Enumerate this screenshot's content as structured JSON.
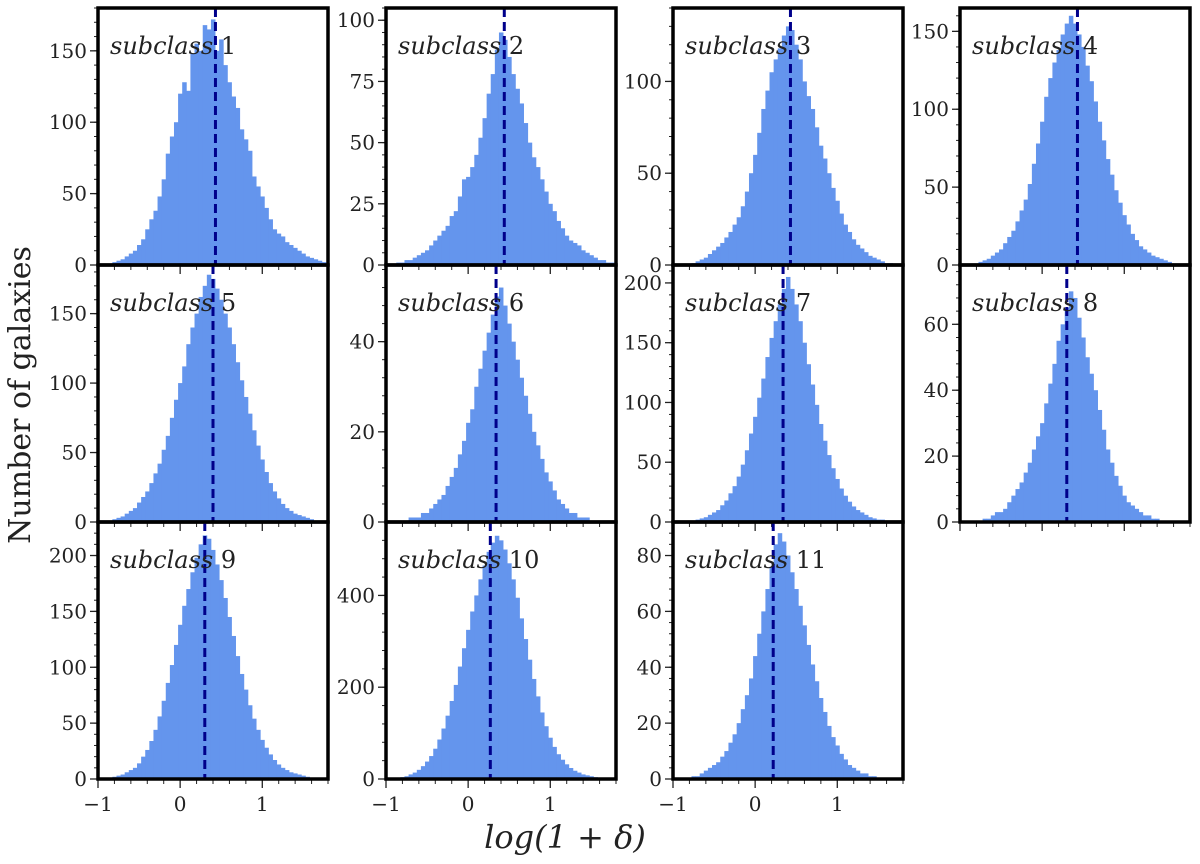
{
  "figure": {
    "ylabel": "Number of galaxies",
    "xlabel": "log(1 + δ)",
    "bar_color": "#6495ED",
    "median_line_color": "#00008B"
  },
  "chart_data": [
    {
      "type": "bar",
      "title": "subclass 1",
      "xlim": [
        -1,
        1.8
      ],
      "ylim": [
        0,
        180
      ],
      "yticks": [
        0,
        50,
        100,
        150
      ],
      "median": 0.43,
      "bin_width": 0.05,
      "x": [
        -0.85,
        -0.8,
        -0.75,
        -0.7,
        -0.65,
        -0.6,
        -0.55,
        -0.5,
        -0.45,
        -0.4,
        -0.35,
        -0.3,
        -0.25,
        -0.2,
        -0.15,
        -0.1,
        -0.05,
        0.0,
        0.05,
        0.1,
        0.15,
        0.2,
        0.25,
        0.3,
        0.35,
        0.4,
        0.45,
        0.5,
        0.55,
        0.6,
        0.65,
        0.7,
        0.75,
        0.8,
        0.85,
        0.9,
        0.95,
        1.0,
        1.05,
        1.1,
        1.15,
        1.2,
        1.25,
        1.3,
        1.35,
        1.4,
        1.45,
        1.5,
        1.55,
        1.6,
        1.65,
        1.7,
        1.75
      ],
      "values": [
        1,
        2,
        3,
        4,
        6,
        8,
        10,
        14,
        18,
        25,
        32,
        38,
        48,
        60,
        78,
        90,
        100,
        120,
        128,
        122,
        148,
        155,
        150,
        168,
        165,
        172,
        150,
        158,
        140,
        128,
        118,
        110,
        95,
        88,
        80,
        62,
        55,
        48,
        40,
        32,
        25,
        22,
        20,
        16,
        14,
        12,
        10,
        8,
        6,
        5,
        4,
        3,
        2
      ]
    },
    {
      "type": "bar",
      "title": "subclass 2",
      "xlim": [
        -1,
        1.8
      ],
      "ylim": [
        0,
        105
      ],
      "yticks": [
        0,
        25,
        50,
        75,
        100
      ],
      "median": 0.44,
      "bin_width": 0.05,
      "x": [
        -0.85,
        -0.8,
        -0.75,
        -0.7,
        -0.65,
        -0.6,
        -0.55,
        -0.5,
        -0.45,
        -0.4,
        -0.35,
        -0.3,
        -0.25,
        -0.2,
        -0.15,
        -0.1,
        -0.05,
        0.0,
        0.05,
        0.1,
        0.15,
        0.2,
        0.25,
        0.3,
        0.35,
        0.4,
        0.45,
        0.5,
        0.55,
        0.6,
        0.65,
        0.7,
        0.75,
        0.8,
        0.85,
        0.9,
        0.95,
        1.0,
        1.05,
        1.1,
        1.15,
        1.2,
        1.25,
        1.3,
        1.35,
        1.4,
        1.45,
        1.5,
        1.55,
        1.6,
        1.65,
        1.7,
        1.75
      ],
      "values": [
        1,
        1,
        2,
        2,
        3,
        4,
        5,
        6,
        8,
        10,
        12,
        14,
        16,
        20,
        22,
        28,
        35,
        36,
        40,
        45,
        52,
        60,
        70,
        78,
        88,
        95,
        92,
        85,
        78,
        72,
        66,
        58,
        50,
        44,
        40,
        35,
        30,
        25,
        22,
        18,
        15,
        12,
        10,
        9,
        8,
        6,
        5,
        4,
        3,
        2,
        2,
        1,
        1
      ]
    },
    {
      "type": "bar",
      "title": "subclass 3",
      "xlim": [
        -1,
        1.8
      ],
      "ylim": [
        0,
        140
      ],
      "yticks": [
        0,
        50,
        100
      ],
      "median": 0.43,
      "bin_width": 0.05,
      "x": [
        -0.85,
        -0.8,
        -0.75,
        -0.7,
        -0.65,
        -0.6,
        -0.55,
        -0.5,
        -0.45,
        -0.4,
        -0.35,
        -0.3,
        -0.25,
        -0.2,
        -0.15,
        -0.1,
        -0.05,
        0.0,
        0.05,
        0.1,
        0.15,
        0.2,
        0.25,
        0.3,
        0.35,
        0.4,
        0.45,
        0.5,
        0.55,
        0.6,
        0.65,
        0.7,
        0.75,
        0.8,
        0.85,
        0.9,
        0.95,
        1.0,
        1.05,
        1.1,
        1.15,
        1.2,
        1.25,
        1.3,
        1.35,
        1.4,
        1.45,
        1.5,
        1.55,
        1.6,
        1.65,
        1.7,
        1.75
      ],
      "values": [
        0,
        0,
        1,
        2,
        3,
        4,
        6,
        8,
        10,
        12,
        15,
        18,
        22,
        26,
        32,
        40,
        50,
        60,
        72,
        85,
        95,
        105,
        112,
        118,
        125,
        130,
        128,
        120,
        112,
        100,
        92,
        85,
        75,
        65,
        58,
        50,
        42,
        35,
        28,
        22,
        18,
        14,
        11,
        9,
        7,
        5,
        4,
        3,
        2,
        1,
        1,
        0,
        0
      ]
    },
    {
      "type": "bar",
      "title": "subclass 4",
      "xlim": [
        -1,
        1.8
      ],
      "ylim": [
        0,
        165
      ],
      "yticks": [
        0,
        50,
        100,
        150
      ],
      "median": 0.43,
      "bin_width": 0.05,
      "x": [
        -0.85,
        -0.8,
        -0.75,
        -0.7,
        -0.65,
        -0.6,
        -0.55,
        -0.5,
        -0.45,
        -0.4,
        -0.35,
        -0.3,
        -0.25,
        -0.2,
        -0.15,
        -0.1,
        -0.05,
        0.0,
        0.05,
        0.1,
        0.15,
        0.2,
        0.25,
        0.3,
        0.35,
        0.4,
        0.45,
        0.5,
        0.55,
        0.6,
        0.65,
        0.7,
        0.75,
        0.8,
        0.85,
        0.9,
        0.95,
        1.0,
        1.05,
        1.1,
        1.15,
        1.2,
        1.25,
        1.3,
        1.35,
        1.4,
        1.45,
        1.5,
        1.55,
        1.6,
        1.65,
        1.7,
        1.75
      ],
      "values": [
        0,
        1,
        2,
        3,
        4,
        6,
        8,
        10,
        14,
        18,
        22,
        28,
        35,
        42,
        52,
        65,
        78,
        92,
        108,
        120,
        130,
        138,
        148,
        155,
        160,
        155,
        148,
        140,
        128,
        118,
        105,
        92,
        80,
        68,
        58,
        48,
        40,
        32,
        26,
        20,
        16,
        12,
        10,
        8,
        6,
        5,
        4,
        3,
        2,
        1,
        1,
        0,
        0
      ]
    },
    {
      "type": "bar",
      "title": "subclass 5",
      "xlim": [
        -1,
        1.8
      ],
      "ylim": [
        0,
        185
      ],
      "yticks": [
        0,
        50,
        100,
        150
      ],
      "median": 0.4,
      "bin_width": 0.05,
      "x": [
        -0.85,
        -0.8,
        -0.75,
        -0.7,
        -0.65,
        -0.6,
        -0.55,
        -0.5,
        -0.45,
        -0.4,
        -0.35,
        -0.3,
        -0.25,
        -0.2,
        -0.15,
        -0.1,
        -0.05,
        0.0,
        0.05,
        0.1,
        0.15,
        0.2,
        0.25,
        0.3,
        0.35,
        0.4,
        0.45,
        0.5,
        0.55,
        0.6,
        0.65,
        0.7,
        0.75,
        0.8,
        0.85,
        0.9,
        0.95,
        1.0,
        1.05,
        1.1,
        1.15,
        1.2,
        1.25,
        1.3,
        1.35,
        1.4,
        1.45,
        1.5,
        1.55,
        1.6,
        1.65,
        1.7,
        1.75
      ],
      "values": [
        1,
        2,
        3,
        4,
        6,
        8,
        10,
        14,
        18,
        22,
        28,
        35,
        42,
        52,
        62,
        75,
        88,
        100,
        112,
        128,
        140,
        150,
        162,
        170,
        178,
        175,
        168,
        160,
        150,
        140,
        128,
        115,
        102,
        90,
        78,
        66,
        55,
        45,
        36,
        28,
        22,
        17,
        13,
        10,
        8,
        6,
        5,
        4,
        3,
        2,
        1,
        1,
        0
      ]
    },
    {
      "type": "bar",
      "title": "subclass 6",
      "xlim": [
        -1,
        1.8
      ],
      "ylim": [
        0,
        57
      ],
      "yticks": [
        0,
        20,
        40
      ],
      "median": 0.34,
      "bin_width": 0.05,
      "x": [
        -0.85,
        -0.8,
        -0.75,
        -0.7,
        -0.65,
        -0.6,
        -0.55,
        -0.5,
        -0.45,
        -0.4,
        -0.35,
        -0.3,
        -0.25,
        -0.2,
        -0.15,
        -0.1,
        -0.05,
        0.0,
        0.05,
        0.1,
        0.15,
        0.2,
        0.25,
        0.3,
        0.35,
        0.4,
        0.45,
        0.5,
        0.55,
        0.6,
        0.65,
        0.7,
        0.75,
        0.8,
        0.85,
        0.9,
        0.95,
        1.0,
        1.05,
        1.1,
        1.15,
        1.2,
        1.25,
        1.3,
        1.35,
        1.4,
        1.45,
        1.5,
        1.55,
        1.6,
        1.65,
        1.7,
        1.75
      ],
      "values": [
        0,
        0,
        0,
        1,
        1,
        1,
        2,
        2,
        3,
        4,
        5,
        6,
        8,
        10,
        12,
        15,
        18,
        22,
        25,
        30,
        34,
        38,
        42,
        46,
        50,
        52,
        48,
        44,
        40,
        36,
        32,
        28,
        24,
        20,
        17,
        14,
        11,
        9,
        7,
        5,
        4,
        3,
        2,
        2,
        1,
        1,
        1,
        0,
        0,
        0,
        0,
        0,
        0
      ]
    },
    {
      "type": "bar",
      "title": "subclass 7",
      "xlim": [
        -1,
        1.8
      ],
      "ylim": [
        0,
        215
      ],
      "yticks": [
        0,
        50,
        100,
        150,
        200
      ],
      "median": 0.34,
      "bin_width": 0.05,
      "x": [
        -0.85,
        -0.8,
        -0.75,
        -0.7,
        -0.65,
        -0.6,
        -0.55,
        -0.5,
        -0.45,
        -0.4,
        -0.35,
        -0.3,
        -0.25,
        -0.2,
        -0.15,
        -0.1,
        -0.05,
        0.0,
        0.05,
        0.1,
        0.15,
        0.2,
        0.25,
        0.3,
        0.35,
        0.4,
        0.45,
        0.5,
        0.55,
        0.6,
        0.65,
        0.7,
        0.75,
        0.8,
        0.85,
        0.9,
        0.95,
        1.0,
        1.05,
        1.1,
        1.15,
        1.2,
        1.25,
        1.3,
        1.35,
        1.4,
        1.45,
        1.5,
        1.55,
        1.6,
        1.65,
        1.7,
        1.75
      ],
      "values": [
        0,
        0,
        1,
        2,
        3,
        4,
        6,
        8,
        10,
        14,
        18,
        24,
        30,
        38,
        48,
        60,
        74,
        88,
        104,
        120,
        138,
        154,
        168,
        182,
        195,
        205,
        195,
        182,
        168,
        150,
        132,
        115,
        98,
        82,
        68,
        56,
        45,
        36,
        28,
        22,
        17,
        13,
        10,
        8,
        6,
        4,
        3,
        2,
        2,
        1,
        1,
        0,
        0
      ]
    },
    {
      "type": "bar",
      "title": "subclass 8",
      "xlim": [
        -1,
        1.8
      ],
      "ylim": [
        0,
        78
      ],
      "yticks": [
        0,
        20,
        40,
        60
      ],
      "median": 0.3,
      "bin_width": 0.05,
      "x": [
        -0.85,
        -0.8,
        -0.75,
        -0.7,
        -0.65,
        -0.6,
        -0.55,
        -0.5,
        -0.45,
        -0.4,
        -0.35,
        -0.3,
        -0.25,
        -0.2,
        -0.15,
        -0.1,
        -0.05,
        0.0,
        0.05,
        0.1,
        0.15,
        0.2,
        0.25,
        0.3,
        0.35,
        0.4,
        0.45,
        0.5,
        0.55,
        0.6,
        0.65,
        0.7,
        0.75,
        0.8,
        0.85,
        0.9,
        0.95,
        1.0,
        1.05,
        1.1,
        1.15,
        1.2,
        1.25,
        1.3,
        1.35,
        1.4,
        1.45,
        1.5,
        1.55,
        1.6,
        1.65,
        1.7,
        1.75
      ],
      "values": [
        0,
        0,
        0,
        1,
        1,
        2,
        3,
        3,
        4,
        6,
        8,
        10,
        12,
        15,
        18,
        22,
        26,
        30,
        36,
        42,
        48,
        55,
        60,
        65,
        70,
        68,
        62,
        56,
        50,
        45,
        40,
        34,
        28,
        22,
        18,
        14,
        11,
        8,
        6,
        5,
        4,
        3,
        2,
        2,
        1,
        1,
        0,
        0,
        0,
        0,
        0,
        0,
        0
      ]
    },
    {
      "type": "bar",
      "title": "subclass 9",
      "xlim": [
        -1,
        1.8
      ],
      "ylim": [
        0,
        230
      ],
      "yticks": [
        0,
        50,
        100,
        150,
        200
      ],
      "median": 0.3,
      "bin_width": 0.05,
      "x": [
        -0.85,
        -0.8,
        -0.75,
        -0.7,
        -0.65,
        -0.6,
        -0.55,
        -0.5,
        -0.45,
        -0.4,
        -0.35,
        -0.3,
        -0.25,
        -0.2,
        -0.15,
        -0.1,
        -0.05,
        0.0,
        0.05,
        0.1,
        0.15,
        0.2,
        0.25,
        0.3,
        0.35,
        0.4,
        0.45,
        0.5,
        0.55,
        0.6,
        0.65,
        0.7,
        0.75,
        0.8,
        0.85,
        0.9,
        0.95,
        1.0,
        1.05,
        1.1,
        1.15,
        1.2,
        1.25,
        1.3,
        1.35,
        1.4,
        1.45,
        1.5,
        1.55,
        1.6,
        1.65,
        1.7,
        1.75
      ],
      "values": [
        1,
        2,
        3,
        4,
        6,
        8,
        10,
        14,
        20,
        26,
        34,
        44,
        56,
        70,
        86,
        102,
        120,
        138,
        155,
        170,
        185,
        198,
        210,
        218,
        215,
        205,
        192,
        178,
        162,
        145,
        128,
        110,
        94,
        80,
        66,
        54,
        44,
        35,
        28,
        22,
        17,
        13,
        10,
        8,
        6,
        5,
        4,
        3,
        2,
        1,
        1,
        0,
        0
      ]
    },
    {
      "type": "bar",
      "title": "subclass 10",
      "xlim": [
        -1,
        1.8
      ],
      "ylim": [
        0,
        560
      ],
      "yticks": [
        0,
        200,
        400
      ],
      "median": 0.27,
      "bin_width": 0.05,
      "x": [
        -0.85,
        -0.8,
        -0.75,
        -0.7,
        -0.65,
        -0.6,
        -0.55,
        -0.5,
        -0.45,
        -0.4,
        -0.35,
        -0.3,
        -0.25,
        -0.2,
        -0.15,
        -0.1,
        -0.05,
        0.0,
        0.05,
        0.1,
        0.15,
        0.2,
        0.25,
        0.3,
        0.35,
        0.4,
        0.45,
        0.5,
        0.55,
        0.6,
        0.65,
        0.7,
        0.75,
        0.8,
        0.85,
        0.9,
        0.95,
        1.0,
        1.05,
        1.1,
        1.15,
        1.2,
        1.25,
        1.3,
        1.35,
        1.4,
        1.45,
        1.5,
        1.55,
        1.6,
        1.65,
        1.7,
        1.75
      ],
      "values": [
        2,
        4,
        6,
        10,
        14,
        20,
        28,
        38,
        50,
        66,
        86,
        110,
        138,
        170,
        205,
        245,
        285,
        325,
        365,
        400,
        435,
        465,
        495,
        515,
        530,
        520,
        500,
        470,
        435,
        395,
        350,
        305,
        260,
        218,
        180,
        145,
        115,
        90,
        70,
        54,
        42,
        32,
        24,
        18,
        14,
        10,
        8,
        6,
        4,
        3,
        2,
        1,
        1
      ]
    },
    {
      "type": "bar",
      "title": "subclass 11",
      "xlim": [
        -1,
        1.8
      ],
      "ylim": [
        0,
        92
      ],
      "yticks": [
        0,
        20,
        40,
        60,
        80
      ],
      "median": 0.22,
      "bin_width": 0.05,
      "x": [
        -0.85,
        -0.8,
        -0.75,
        -0.7,
        -0.65,
        -0.6,
        -0.55,
        -0.5,
        -0.45,
        -0.4,
        -0.35,
        -0.3,
        -0.25,
        -0.2,
        -0.15,
        -0.1,
        -0.05,
        0.0,
        0.05,
        0.1,
        0.15,
        0.2,
        0.25,
        0.3,
        0.35,
        0.4,
        0.45,
        0.5,
        0.55,
        0.6,
        0.65,
        0.7,
        0.75,
        0.8,
        0.85,
        0.9,
        0.95,
        1.0,
        1.05,
        1.1,
        1.15,
        1.2,
        1.25,
        1.3,
        1.35,
        1.4,
        1.45,
        1.5,
        1.55,
        1.6,
        1.65,
        1.7,
        1.75
      ],
      "values": [
        0,
        0,
        1,
        1,
        2,
        3,
        4,
        5,
        6,
        8,
        10,
        13,
        16,
        20,
        25,
        30,
        36,
        44,
        52,
        60,
        68,
        76,
        84,
        88,
        85,
        80,
        74,
        68,
        62,
        55,
        48,
        41,
        35,
        29,
        24,
        19,
        15,
        12,
        9,
        7,
        5,
        4,
        3,
        2,
        2,
        1,
        1,
        0,
        0,
        0,
        0,
        0,
        0
      ]
    }
  ]
}
